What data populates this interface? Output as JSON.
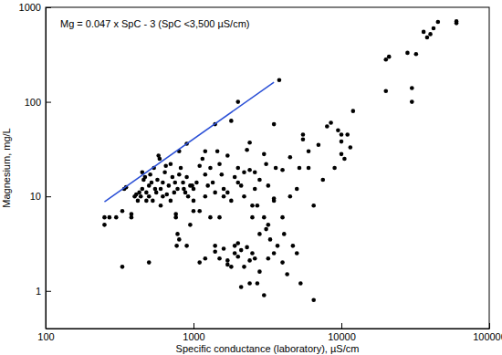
{
  "chart_data": {
    "type": "scatter",
    "x_label": "Specific conductance (laboratory), µS/cm",
    "y_label": "Magnesium, mg/L",
    "annotations": [
      "Mg = 0.047 x SpC - 3  (SpC <3,500 µS/cm)"
    ],
    "log": true,
    "grid": false,
    "xlim": [
      100,
      100000
    ],
    "ylim": [
      0.4,
      1000
    ],
    "xticks": [
      100,
      1000,
      10000,
      100000
    ],
    "yticks": [
      1,
      10,
      100,
      1000
    ],
    "series": [
      {
        "type": "scatter",
        "color": "#000000",
        "marker": "circle",
        "x": [
          250,
          250,
          270,
          300,
          330,
          340,
          350,
          330,
          380,
          380,
          400,
          410,
          420,
          430,
          440,
          450,
          450,
          460,
          470,
          480,
          480,
          500,
          500,
          510,
          520,
          530,
          540,
          550,
          560,
          570,
          580,
          590,
          600,
          600,
          620,
          620,
          640,
          650,
          660,
          680,
          700,
          700,
          720,
          740,
          750,
          760,
          760,
          770,
          780,
          780,
          800,
          800,
          820,
          850,
          860,
          880,
          900,
          900,
          920,
          950,
          980,
          1000,
          1000,
          1050,
          1100,
          1100,
          1150,
          1200,
          1200,
          1250,
          1300,
          1350,
          1400,
          1400,
          1450,
          1500,
          1500,
          1550,
          1600,
          1600,
          1700,
          1700,
          1800,
          1900,
          2000,
          2000,
          2100,
          2200,
          2300,
          2400,
          2500,
          2500,
          2600,
          2800,
          3000,
          3100,
          3200,
          3500,
          3800,
          3600,
          3000,
          3200,
          3500,
          4000,
          4500,
          4500,
          5000,
          5200,
          5500,
          5500,
          6000,
          6000,
          6500,
          7000,
          7500,
          8000,
          8500,
          9000,
          9500,
          10000,
          10000,
          10000,
          11000,
          11500,
          12000,
          10500,
          500,
          800,
          1100,
          1200,
          1400,
          1400,
          1500,
          1600,
          1700,
          1700,
          1800,
          1900,
          1900,
          2000,
          2000,
          2100,
          2200,
          2300,
          2400,
          2500,
          2100,
          2400,
          2700,
          2600,
          2800,
          3000,
          3200,
          3300,
          3500,
          3700,
          4000,
          4100,
          4300,
          4700,
          5000,
          5300,
          6500,
          3100,
          4000,
          3500,
          20000,
          20000,
          21000,
          28000,
          30000,
          30000,
          32000,
          36000,
          38000,
          42000,
          45000,
          60000,
          60000,
          40000,
          1200,
          1300,
          1800,
          2000,
          2200,
          2400,
          2600,
          2700,
          2800,
          900,
          950,
          1000
        ],
        "values": [
          5,
          6,
          6,
          6,
          7,
          12,
          12.5,
          1.8,
          6,
          6.5,
          10,
          10.5,
          9,
          11,
          10,
          12,
          18,
          15,
          16,
          11,
          9,
          10,
          13,
          17,
          14,
          9,
          20,
          12,
          11,
          15,
          27,
          25,
          12,
          8,
          14,
          10,
          18,
          21,
          10.5,
          13,
          22,
          9,
          16,
          11,
          14,
          6,
          6.5,
          3,
          4,
          12,
          30,
          17,
          20,
          14,
          12,
          11,
          16,
          36,
          10,
          13,
          13,
          12,
          9,
          14,
          7,
          21,
          25,
          17,
          10,
          13,
          6,
          14,
          11,
          58,
          30,
          22,
          6,
          17,
          12,
          10,
          11,
          27,
          63,
          16,
          100,
          14,
          13,
          18,
          31,
          37,
          6,
          8,
          18,
          15,
          28,
          22,
          13,
          58,
          170,
          20,
          6,
          5,
          9,
          19,
          26,
          10,
          12,
          20,
          40,
          45,
          30,
          20,
          8,
          35,
          15,
          55,
          60,
          20,
          50,
          38,
          28,
          45,
          45,
          33,
          80,
          25,
          2,
          3.5,
          2,
          2.2,
          3,
          2.6,
          2.2,
          2.8,
          1.9,
          2.1,
          1.8,
          3,
          2.5,
          3.2,
          2.3,
          2.7,
          1.8,
          2.9,
          2.1,
          2.5,
          1.1,
          1.2,
          1.2,
          2.2,
          1.6,
          0.9,
          2.2,
          3.5,
          2.5,
          3,
          2,
          4,
          1.5,
          3,
          2.5,
          1.2,
          0.8,
          4.5,
          6,
          9.5,
          130,
          280,
          300,
          330,
          100,
          140,
          320,
          550,
          480,
          600,
          700,
          680,
          710,
          520,
          30,
          20,
          9,
          20,
          10,
          19,
          12,
          8,
          4,
          3,
          5,
          7
        ]
      },
      {
        "type": "line",
        "color": "#2a4fd6",
        "line_style": "solid",
        "x": [
          250,
          3500
        ],
        "values": [
          8.75,
          161.5
        ]
      }
    ]
  }
}
